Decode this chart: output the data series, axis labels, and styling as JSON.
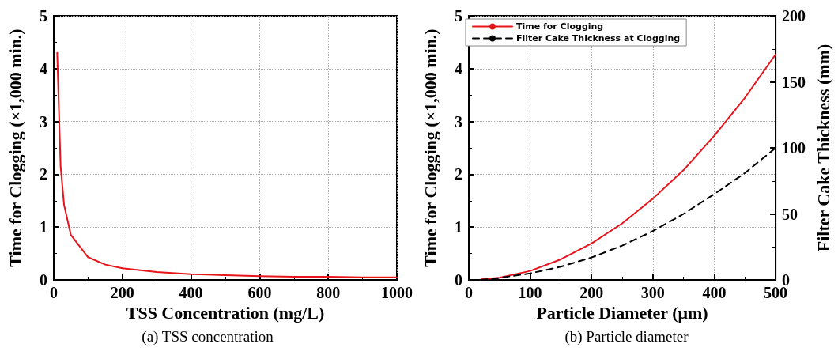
{
  "chart_data": [
    {
      "type": "line",
      "title": "(a) TSS concentration",
      "xlabel": "TSS Concentration (mg/L)",
      "ylabel": "Time for Clogging (×1,000 min.)",
      "xlim": [
        0,
        1000
      ],
      "xticks": [
        0,
        200,
        400,
        600,
        800,
        1000
      ],
      "ylim": [
        0,
        5
      ],
      "yticks": [
        0,
        1,
        2,
        3,
        4,
        5
      ],
      "grid": true,
      "legend": false,
      "marker": "none",
      "line_style": "solid",
      "series": [
        {
          "color": "#e8141c",
          "x": [
            10,
            20,
            30,
            50,
            100,
            150,
            200,
            300,
            400,
            500,
            600,
            700,
            800,
            900,
            1000
          ],
          "values": [
            4.3,
            2.15,
            1.42,
            0.85,
            0.43,
            0.29,
            0.22,
            0.15,
            0.11,
            0.09,
            0.07,
            0.06,
            0.06,
            0.05,
            0.05
          ]
        }
      ]
    },
    {
      "type": "line",
      "title": "(b) Particle diameter",
      "xlabel": "Particle Diameter (μm)",
      "ylabel": "Time for Clogging (×1,000 min.)",
      "y2label": "Filter Cake Thickness (mm)",
      "xlim": [
        0,
        500
      ],
      "xticks": [
        0,
        100,
        200,
        300,
        400,
        500
      ],
      "ylim": [
        0,
        5
      ],
      "yticks": [
        0,
        1,
        2,
        3,
        4,
        5
      ],
      "y2lim": [
        0,
        200
      ],
      "y2ticks": [
        0,
        50,
        100,
        150,
        200
      ],
      "grid": true,
      "legend": "top left",
      "marker": "none",
      "series": [
        {
          "name": "Time for Clogging",
          "color": "#e8141c",
          "line_style": "solid",
          "x": [
            20,
            50,
            100,
            150,
            200,
            250,
            300,
            350,
            400,
            450,
            500
          ],
          "values": [
            0.01,
            0.04,
            0.17,
            0.39,
            0.69,
            1.07,
            1.54,
            2.08,
            2.73,
            3.45,
            4.27
          ]
        },
        {
          "name": "Filter Cake Thickness at Clogging",
          "color": "#000000",
          "line_style": "dashed",
          "axis": "y2",
          "x": [
            20,
            50,
            100,
            150,
            200,
            250,
            300,
            350,
            400,
            450,
            500
          ],
          "values": [
            0,
            1.5,
            5,
            10,
            17,
            26,
            37,
            50,
            65,
            81,
            100
          ]
        }
      ]
    }
  ]
}
